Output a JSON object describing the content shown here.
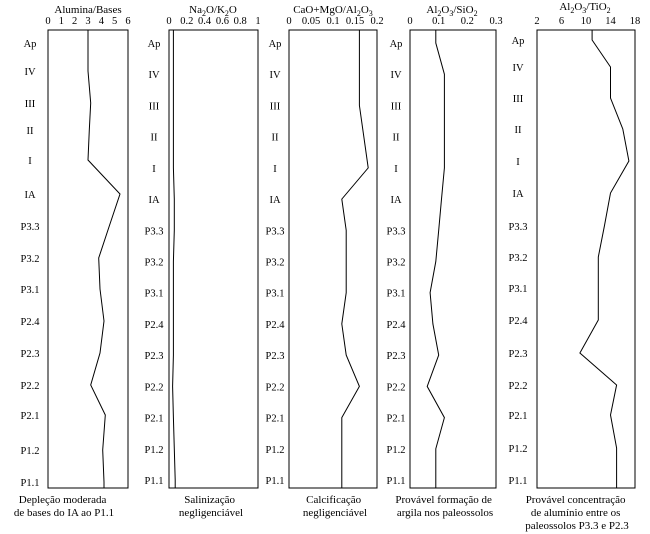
{
  "chart_data": [
    {
      "type": "line",
      "title": "Alumina/Bases",
      "xlim": [
        0,
        6
      ],
      "xticks": [
        "0",
        "1",
        "2",
        "3",
        "4",
        "5",
        "6"
      ],
      "categories": [
        "Ap",
        "IV",
        "III",
        "II",
        "I",
        "IA",
        "P3.3",
        "P3.2",
        "P3.1",
        "P2.4",
        "P2.3",
        "P2.2",
        "P2.1",
        "P1.2",
        "P1.1"
      ],
      "values": [
        3.0,
        3.0,
        3.2,
        3.1,
        3.0,
        5.4,
        4.6,
        3.8,
        3.9,
        4.2,
        3.9,
        3.2,
        4.3,
        4.1,
        4.2
      ],
      "caption": [
        "Depleção moderada",
        "de bases do IA ao P1.1"
      ]
    },
    {
      "type": "line",
      "title": "Na2O/K2O",
      "title_parts": {
        "a": "Na",
        "b": "2",
        "c": "O/K",
        "d": "2",
        "e": "O"
      },
      "xlim": [
        0,
        1
      ],
      "xticks": [
        "0",
        "0.2",
        "0.4",
        "0.6",
        "0.8",
        "1"
      ],
      "categories": [
        "Ap",
        "IV",
        "III",
        "II",
        "I",
        "IA",
        "P3.3",
        "P3.2",
        "P3.1",
        "P2.4",
        "P2.3",
        "P2.2",
        "P2.1",
        "P1.2",
        "P1.1"
      ],
      "values": [
        0.05,
        0.05,
        0.05,
        0.05,
        0.05,
        0.06,
        0.06,
        0.05,
        0.05,
        0.05,
        0.05,
        0.04,
        0.05,
        0.06,
        0.07
      ],
      "caption": [
        "Salinização",
        "negligenciável"
      ]
    },
    {
      "type": "line",
      "title": "CaO+MgO/Al2O3",
      "title_parts": {
        "a": "CaO+MgO/Al",
        "b": "2",
        "c": "O",
        "d": "3"
      },
      "xlim": [
        0,
        0.2
      ],
      "xticks": [
        "0",
        "0.05",
        "0.1",
        "0.15",
        "0.2"
      ],
      "categories": [
        "Ap",
        "IV",
        "III",
        "II",
        "I",
        "IA",
        "P3.3",
        "P3.2",
        "P3.1",
        "P2.4",
        "P2.3",
        "P2.2",
        "P2.1",
        "P1.2",
        "P1.1"
      ],
      "values": [
        0.16,
        0.16,
        0.16,
        0.17,
        0.18,
        0.12,
        0.13,
        0.13,
        0.13,
        0.12,
        0.13,
        0.16,
        0.12,
        0.12,
        0.12
      ],
      "caption": [
        "Calcificação",
        "negligenciável"
      ]
    },
    {
      "type": "line",
      "title": "Al2O3/SiO2",
      "title_parts": {
        "a": "Al",
        "b": "2",
        "c": "O",
        "d": "3",
        "e": "/SiO",
        "f": "2"
      },
      "xlim": [
        0,
        0.3
      ],
      "xticks": [
        "0",
        "0.1",
        "0.2",
        "0.3"
      ],
      "categories": [
        "Ap",
        "IV",
        "III",
        "II",
        "I",
        "IA",
        "P3.3",
        "P3.2",
        "P3.1",
        "P2.4",
        "P2.3",
        "P2.2",
        "P2.1",
        "P1.2",
        "P1.1"
      ],
      "values": [
        0.09,
        0.12,
        0.12,
        0.12,
        0.12,
        0.11,
        0.1,
        0.09,
        0.07,
        0.08,
        0.1,
        0.06,
        0.12,
        0.09,
        0.09
      ],
      "caption": [
        "Provável formação de",
        "argila nos paleossolos"
      ]
    },
    {
      "type": "line",
      "title": "Al2O3/TiO2",
      "title_parts": {
        "a": "Al",
        "b": "2",
        "c": "O",
        "d": "3",
        "e": "/TiO",
        "f": "2"
      },
      "xlim": [
        2,
        18
      ],
      "xticks": [
        "2",
        "6",
        "10",
        "14",
        "18"
      ],
      "categories": [
        "Ap",
        "IV",
        "III",
        "II",
        "I",
        "IA",
        "P3.3",
        "P3.2",
        "P3.1",
        "P2.4",
        "P2.3",
        "P2.2",
        "P2.1",
        "P1.2",
        "P1.1"
      ],
      "values": [
        11,
        14,
        14,
        16,
        17,
        14,
        13,
        12,
        12,
        12,
        9,
        15,
        14,
        15,
        15
      ],
      "caption": [
        "Provável concentração",
        "de alumínio entre os",
        "paleossolos P3.3 e P2.3"
      ]
    }
  ]
}
